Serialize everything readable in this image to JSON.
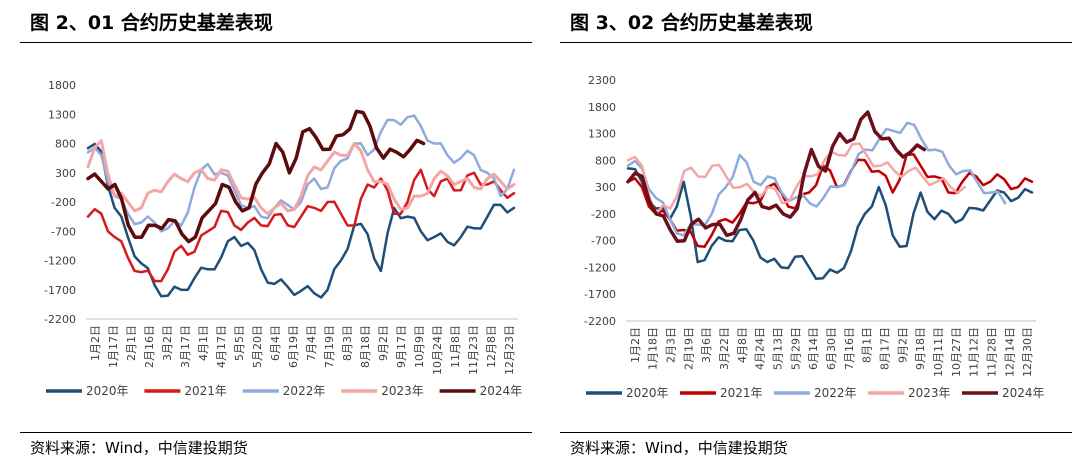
{
  "charts": [
    {
      "id": "left",
      "figure_title": "图 2、01 合约历史基差表现",
      "source": "资料来源：Wind，中信建投期货",
      "chart_data": {
        "type": "line",
        "title": "图 2、01 合约历史基差表现",
        "xlabel": "",
        "ylabel": "",
        "ylim": [
          -2200,
          1800
        ],
        "yticks": [
          1800,
          1300,
          800,
          300,
          -200,
          -700,
          -1200,
          -1700,
          -2200
        ],
        "xticks": [
          "1月2日",
          "1月17日",
          "2月1日",
          "2月16日",
          "3月2日",
          "3月17日",
          "4月1日",
          "4月17日",
          "5月5日",
          "5月20日",
          "6月4日",
          "6月19日",
          "7月4日",
          "7月19日",
          "8月3日",
          "8月18日",
          "9月2日",
          "9月17日",
          "10月9日",
          "10月24日",
          "11月8日",
          "11月23日",
          "12月8日",
          "12月23日"
        ],
        "grid": false,
        "legend_position": "bottom",
        "series": [
          {
            "name": "2020年",
            "color": "#1f4e79",
            "width": 2.5,
            "values": [
              720,
              660,
              -300,
              -800,
              -1250,
              -1620,
              -1800,
              -1700,
              -1500,
              -1350,
              -1150,
              -800,
              -900,
              -1350,
              -1600,
              -1650,
              -1720,
              -1760,
              -1700,
              -1200,
              -600,
              -750,
              -1380,
              -300,
              -450,
              -700,
              -800,
              -880,
              -800,
              -650,
              -450,
              -250,
              -300
            ]
          },
          {
            "name": "2021年",
            "color": "#d7191c",
            "width": 2.5,
            "values": [
              -450,
              -400,
              -800,
              -1150,
              -1400,
              -1550,
              -1350,
              -950,
              -1050,
              -700,
              -350,
              -600,
              -550,
              -600,
              -420,
              -600,
              -450,
              -300,
              -200,
              -400,
              -600,
              100,
              200,
              -400,
              -200,
              350,
              -100,
              200,
              0,
              300,
              100,
              0,
              -50
            ]
          },
          {
            "name": "2022年",
            "color": "#8faadc",
            "width": 2.5,
            "values": [
              650,
              600,
              -100,
              -400,
              -550,
              -550,
              -650,
              -600,
              50,
              450,
              300,
              0,
              -300,
              -450,
              -300,
              -250,
              -200,
              200,
              50,
              500,
              800,
              600,
              1000,
              1200,
              1250,
              1100,
              800,
              600,
              550,
              600,
              300,
              -100,
              350
            ]
          },
          {
            "name": "2023年",
            "color": "#f4a6a6",
            "width": 3,
            "values": [
              400,
              850,
              -100,
              -200,
              -300,
              0,
              150,
              200,
              300,
              200,
              350,
              100,
              -150,
              -300,
              -300,
              -350,
              -100,
              400,
              500,
              600,
              800,
              350,
              150,
              -150,
              -300,
              -100,
              200,
              250,
              150,
              50,
              200,
              150,
              100
            ]
          },
          {
            "name": "2024年",
            "color": "#5c0a0a",
            "width": 3.5,
            "values": [
              200,
              150,
              100,
              -600,
              -800,
              -600,
              -500,
              -750,
              -800,
              -350,
              100,
              -200,
              -300,
              300,
              800,
              300,
              1000,
              900,
              700,
              950,
              1350,
              1100,
              550,
              650,
              700,
              800
            ]
          }
        ]
      }
    },
    {
      "id": "right",
      "figure_title": "图 3、02 合约历史基差表现",
      "source": "资料来源：Wind，中信建投期货",
      "chart_data": {
        "type": "line",
        "title": "图 3、02 合约历史基差表现",
        "xlabel": "",
        "ylabel": "",
        "ylim": [
          -2200,
          2300
        ],
        "yticks": [
          2300,
          1800,
          1300,
          800,
          300,
          -200,
          -700,
          -1200,
          -1700,
          -2200
        ],
        "xticks": [
          "1月2日",
          "1月18日",
          "2月3日",
          "2月19日",
          "3月6日",
          "3月22日",
          "4月8日",
          "4月24日",
          "5月13日",
          "5月29日",
          "6月14日",
          "6月30日",
          "7月16日",
          "8月1日",
          "8月17日",
          "9月2日",
          "9月18日",
          "10月11日",
          "10月27日",
          "11月12日",
          "11月28日",
          "12月14日",
          "12月30日"
        ],
        "grid": false,
        "legend_position": "bottom",
        "series": [
          {
            "name": "2020年",
            "color": "#1f4e79",
            "width": 2.5,
            "values": [
              650,
              400,
              -100,
              -300,
              400,
              -1100,
              -800,
              -700,
              -500,
              -700,
              -1100,
              -1200,
              -1000,
              -1200,
              -1400,
              -1300,
              -900,
              -200,
              300,
              -600,
              -800,
              200,
              -300,
              -200,
              -300,
              -100,
              50,
              200,
              100,
              200
            ]
          },
          {
            "name": "2021年",
            "color": "#c00000",
            "width": 2.5,
            "values": [
              400,
              300,
              -200,
              -300,
              -500,
              -800,
              -600,
              -300,
              -200,
              0,
              300,
              200,
              -100,
              200,
              700,
              300,
              600,
              800,
              600,
              200,
              900,
              700,
              500,
              200,
              400,
              500,
              400,
              450,
              300,
              400
            ]
          },
          {
            "name": "2022年",
            "color": "#8faadc",
            "width": 2.5,
            "values": [
              700,
              650,
              100,
              -300,
              -600,
              -400,
              -200,
              300,
              900,
              400,
              500,
              200,
              100,
              0,
              100,
              300,
              600,
              1000,
              1200,
              1350,
              1500,
              1200,
              1000,
              700,
              600,
              400,
              200,
              0
            ]
          },
          {
            "name": "2023年",
            "color": "#f4a6a6",
            "width": 2.5,
            "values": [
              800,
              700,
              -200,
              -100,
              600,
              500,
              700,
              500,
              300,
              200,
              300,
              0,
              300,
              500,
              800,
              900,
              1100,
              900,
              700,
              600,
              600,
              500,
              400,
              300,
              300
            ]
          },
          {
            "name": "2024年",
            "color": "#6b0f1a",
            "width": 3.5,
            "values": [
              400,
              500,
              -200,
              -500,
              -700,
              -300,
              -400,
              -600,
              -300,
              200,
              -100,
              -200,
              -100,
              1000,
              600,
              1300,
              1200,
              1700,
              1200,
              1000,
              950,
              1000
            ]
          }
        ]
      }
    }
  ]
}
